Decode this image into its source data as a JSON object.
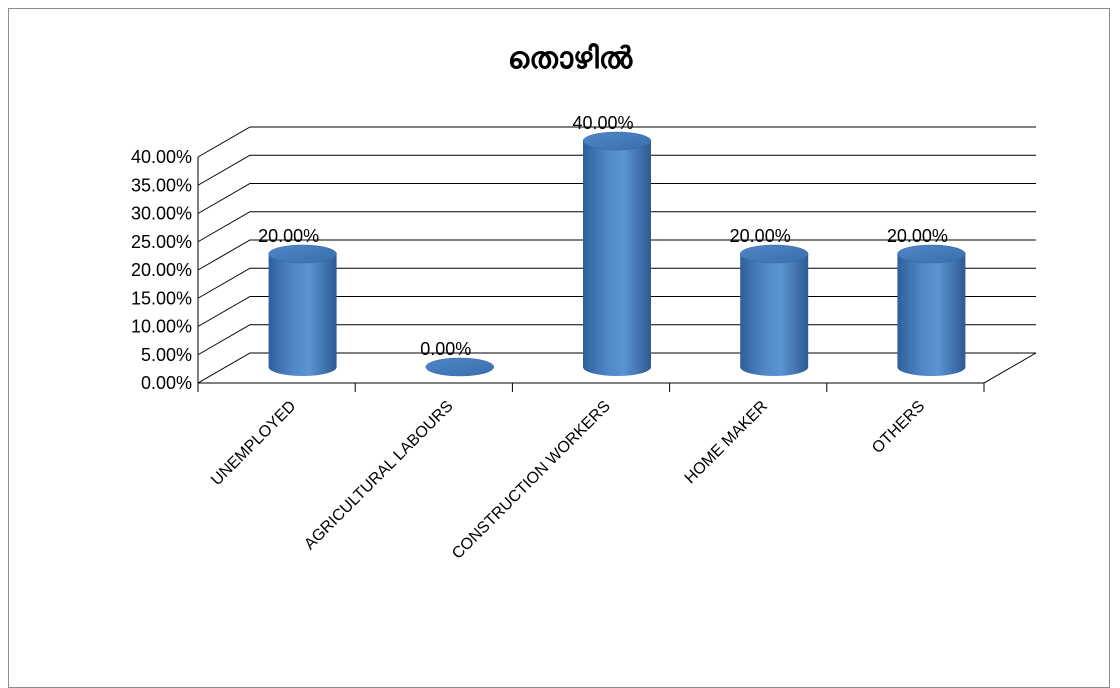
{
  "chart_data": {
    "type": "bar",
    "style": "3d-cylinder",
    "title": "തൊഴിൽ",
    "categories": [
      "UNEMPLOYED",
      "AGRICULTURAL LABOURS",
      "CONSTRUCTION WORKERS",
      "HOME MAKER",
      "OTHERS"
    ],
    "values": [
      0.2,
      0.0,
      0.4,
      0.2,
      0.2
    ],
    "value_labels": [
      "20.00%",
      "0.00%",
      "40.00%",
      "20.00%",
      "20.00%"
    ],
    "ylim": [
      0,
      0.4
    ],
    "y_ticks": [
      "0.00%",
      "5.00%",
      "10.00%",
      "15.00%",
      "20.00%",
      "25.00%",
      "30.00%",
      "35.00%",
      "40.00%"
    ],
    "grid": true,
    "legend": "none",
    "bar_color": "#4a7ebb",
    "grid_color": "#000000"
  }
}
